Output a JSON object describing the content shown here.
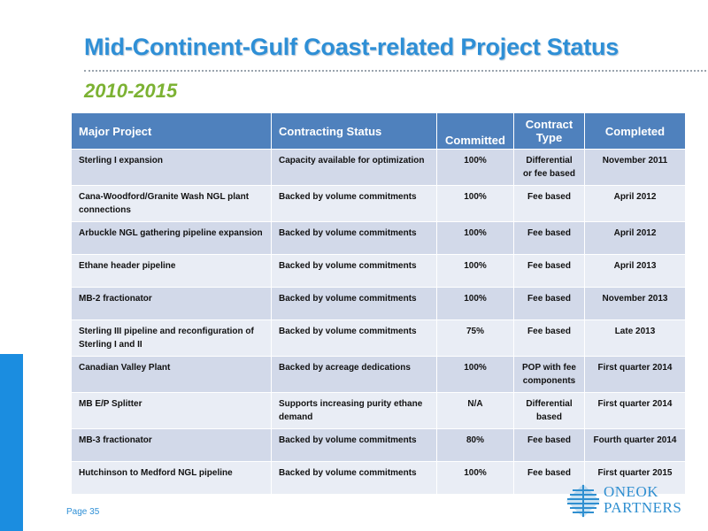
{
  "slide": {
    "title": "Mid-Continent-Gulf Coast-related Project Status",
    "subtitle": "2010-2015",
    "page_label": "Page 35"
  },
  "table": {
    "headers": {
      "project": "Major Project",
      "contracting": "Contracting Status",
      "committed": "Committed",
      "type": "Contract Type",
      "completed": "Completed"
    },
    "rows": [
      {
        "project": "Sterling I expansion",
        "contracting": "Capacity available for optimization",
        "committed": "100%",
        "type": "Differential or fee based",
        "completed": "November 2011"
      },
      {
        "project": "Cana-Woodford/Granite Wash NGL plant connections",
        "contracting": "Backed by volume commitments",
        "committed": "100%",
        "type": "Fee based",
        "completed": "April 2012"
      },
      {
        "project": "Arbuckle NGL gathering pipeline expansion",
        "contracting": "Backed by volume commitments",
        "committed": "100%",
        "type": "Fee based",
        "completed": "April 2012"
      },
      {
        "project": "Ethane header pipeline",
        "contracting": "Backed by volume commitments",
        "committed": "100%",
        "type": "Fee based",
        "completed": "April 2013"
      },
      {
        "project": "MB-2 fractionator",
        "contracting": "Backed by volume commitments",
        "committed": "100%",
        "type": "Fee based",
        "completed": "November 2013"
      },
      {
        "project": "Sterling III pipeline and reconfiguration of Sterling I and II",
        "contracting": "Backed by volume commitments",
        "committed": "75%",
        "type": "Fee based",
        "completed": "Late 2013"
      },
      {
        "project": "Canadian Valley Plant",
        "contracting": "Backed by acreage dedications",
        "committed": "100%",
        "type": "POP with fee components",
        "completed": "First quarter 2014"
      },
      {
        "project": "MB E/P Splitter",
        "contracting": "Supports increasing purity ethane demand",
        "committed": "N/A",
        "type": "Differential based",
        "completed": "First quarter 2014"
      },
      {
        "project": "MB-3 fractionator",
        "contracting": "Backed by volume commitments",
        "committed": "80%",
        "type": "Fee based",
        "completed": "Fourth quarter 2014"
      },
      {
        "project": "Hutchinson to Medford NGL pipeline",
        "contracting": "Backed by volume commitments",
        "committed": "100%",
        "type": "Fee based",
        "completed": "First quarter 2015"
      }
    ]
  },
  "logo": {
    "line1": "ONEOK",
    "line2": "PARTNERS",
    "icon": "oneok-logo-icon"
  },
  "colors": {
    "title": "#2e8fd6",
    "subtitle": "#7cb233",
    "header_bg": "#4f81bd",
    "row_odd": "#d2d9e9",
    "row_even": "#e9edf5",
    "accent_bar": "#1b8de0"
  }
}
